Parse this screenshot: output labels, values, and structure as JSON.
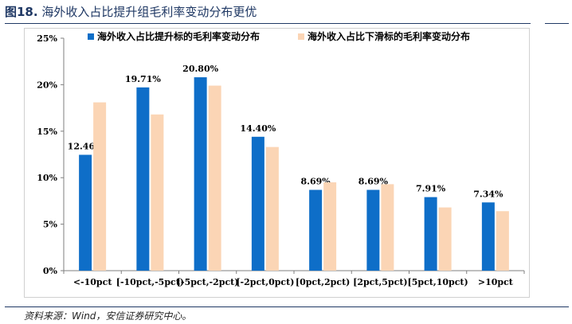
{
  "figure": {
    "number": "图18.",
    "title": "海外收入占比提升组毛利率变动分布更优",
    "source": "资料来源：Wind，安信证券研究中心。"
  },
  "colors": {
    "title": "#1f3864",
    "series_up": "#0e6ec8",
    "series_down": "#fbd5b5",
    "axis": "#7f7f7f"
  },
  "chart_data": {
    "type": "bar",
    "categories": [
      "<-10pct",
      "[-10pct,-5pct)",
      "[-5pct,-2pct)",
      "[-2pct,0pct)",
      "[0pct,2pct)",
      "[2pct,5pct)",
      "[5pct,10pct)",
      ">10pct"
    ],
    "series": [
      {
        "name": "海外收入占比提升标的毛利率变动分布",
        "values": [
          12.46,
          19.71,
          20.8,
          14.4,
          8.69,
          8.69,
          7.91,
          7.34
        ],
        "labels": [
          "12.46%",
          "19.71%",
          "20.80%",
          "14.40%",
          "8.69%",
          "8.69%",
          "7.91%",
          "7.34%"
        ]
      },
      {
        "name": "海外收入占比下滑标的毛利率变动分布",
        "values": [
          18.1,
          16.8,
          19.9,
          13.3,
          9.5,
          9.3,
          6.8,
          6.4
        ]
      }
    ],
    "ylim": [
      0,
      25
    ],
    "yticks": [
      "0%",
      "5%",
      "10%",
      "15%",
      "20%",
      "25%"
    ],
    "legend": "top",
    "grid": false
  }
}
